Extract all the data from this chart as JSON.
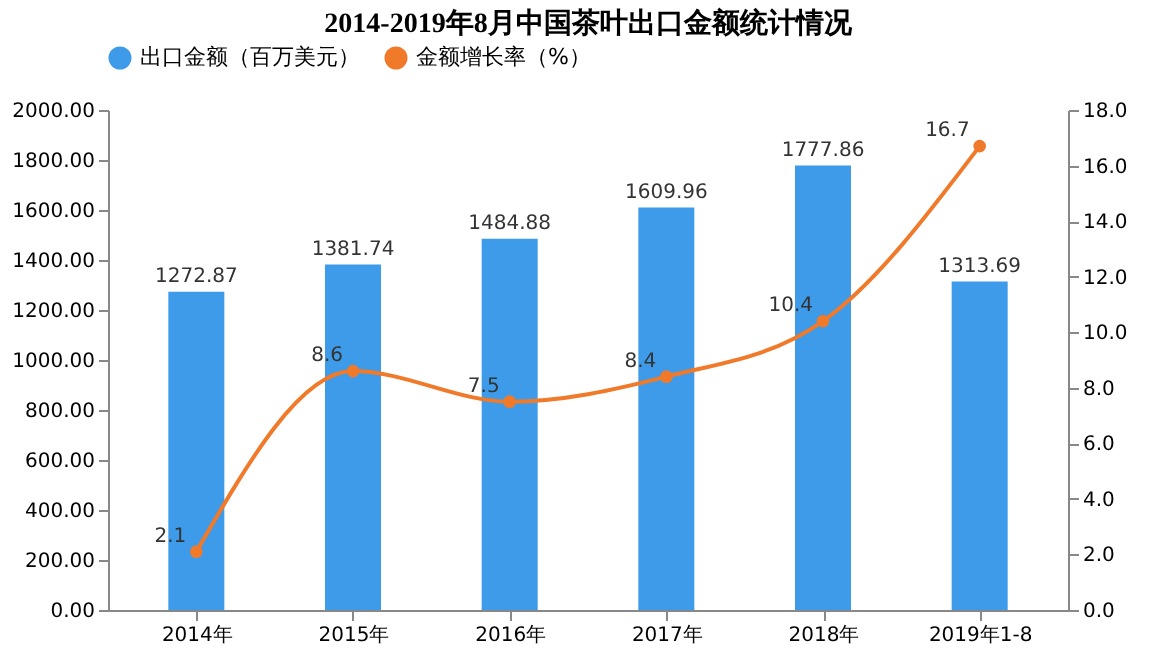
{
  "chart_data": {
    "type": "bar",
    "title": "2014-2019年8月中国茶叶出口金额统计情况",
    "categories": [
      "2014年",
      "2015年",
      "2016年",
      "2017年",
      "2018年",
      "2019年1-8"
    ],
    "series": [
      {
        "name": "出口金额（百万美元）",
        "color": "#3d9be9",
        "values": [
          1272.87,
          1381.74,
          1484.88,
          1609.96,
          1777.86,
          1313.69
        ]
      },
      {
        "name": "金额增长率（%）",
        "type": "line",
        "axis": "y2",
        "color": "#f07a2a",
        "marker": "circle",
        "values": [
          2.1,
          8.6,
          7.5,
          8.4,
          10.4,
          16.7
        ]
      }
    ],
    "ylim": [
      0,
      2000
    ],
    "yticks": [
      {
        "value": 0,
        "label": "0.00"
      },
      {
        "value": 200,
        "label": "200.00"
      },
      {
        "value": 400,
        "label": "400.00"
      },
      {
        "value": 600,
        "label": "600.00"
      },
      {
        "value": 800,
        "label": "800.00"
      },
      {
        "value": 1000,
        "label": "1000.00"
      },
      {
        "value": 1200,
        "label": "1200.00"
      },
      {
        "value": 1400,
        "label": "1400.00"
      },
      {
        "value": 1600,
        "label": "1600.00"
      },
      {
        "value": 1800,
        "label": "1800.00"
      },
      {
        "value": 2000,
        "label": "2000.00"
      }
    ],
    "y2lim": [
      0,
      18
    ],
    "y2ticks": [
      {
        "value": 0,
        "label": "0.0"
      },
      {
        "value": 2,
        "label": "2.0"
      },
      {
        "value": 4,
        "label": "4.0"
      },
      {
        "value": 6,
        "label": "6.0"
      },
      {
        "value": 8,
        "label": "8.0"
      },
      {
        "value": 10,
        "label": "10.0"
      },
      {
        "value": 12,
        "label": "12.0"
      },
      {
        "value": 14,
        "label": "14.0"
      },
      {
        "value": 16,
        "label": "16.0"
      },
      {
        "value": 18,
        "label": "18.0"
      }
    ],
    "data_labels": true,
    "legend": "top",
    "grid": false
  }
}
